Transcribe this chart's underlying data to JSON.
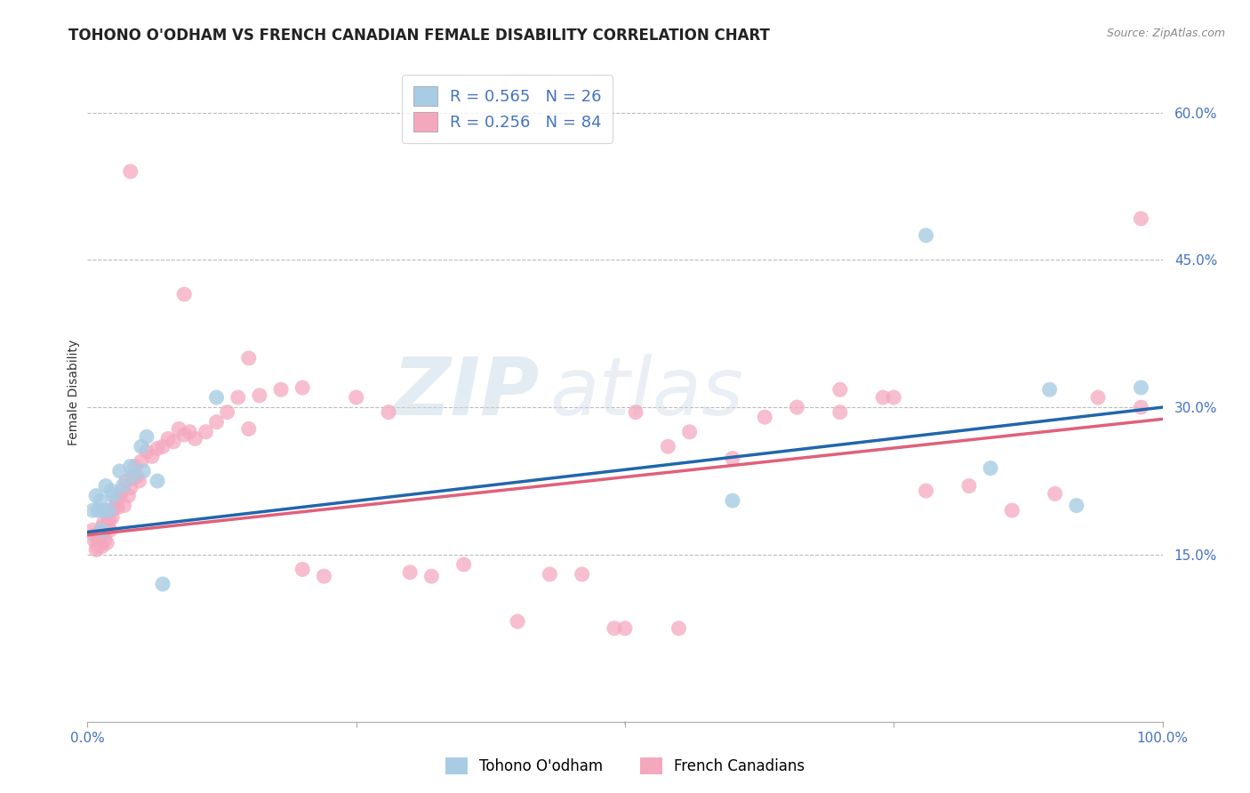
{
  "title": "TOHONO O'ODHAM VS FRENCH CANADIAN FEMALE DISABILITY CORRELATION CHART",
  "source": "Source: ZipAtlas.com",
  "ylabel": "Female Disability",
  "watermark_zip": "ZIP",
  "watermark_atlas": "atlas",
  "xlim": [
    0.0,
    1.0
  ],
  "ylim": [
    -0.02,
    0.65
  ],
  "ytick_positions": [
    0.15,
    0.3,
    0.45,
    0.6
  ],
  "yticklabels": [
    "15.0%",
    "30.0%",
    "45.0%",
    "60.0%"
  ],
  "xticks": [
    0.0,
    0.25,
    0.5,
    0.75,
    1.0
  ],
  "xticklabels": [
    "0.0%",
    "",
    "",
    "",
    "100.0%"
  ],
  "legend_r1": "R = 0.565",
  "legend_n1": "N = 26",
  "legend_r2": "R = 0.256",
  "legend_n2": "N = 84",
  "color_blue": "#a8cce4",
  "color_pink": "#f4a8be",
  "line_blue": "#2166ac",
  "line_pink": "#e0607a",
  "legend_label1": "Tohono O'odham",
  "legend_label2": "French Canadians",
  "background_color": "#ffffff",
  "grid_color": "#bbbbbb",
  "title_fontsize": 12,
  "axis_label_fontsize": 10,
  "tick_fontsize": 11,
  "tohono_x": [
    0.005,
    0.008,
    0.01,
    0.012,
    0.013,
    0.015,
    0.017,
    0.02,
    0.022,
    0.024,
    0.03,
    0.033,
    0.04,
    0.042,
    0.05,
    0.052,
    0.055,
    0.065,
    0.07,
    0.12,
    0.6,
    0.78,
    0.84,
    0.895,
    0.92,
    0.98
  ],
  "tohono_y": [
    0.195,
    0.21,
    0.195,
    0.205,
    0.175,
    0.195,
    0.22,
    0.195,
    0.215,
    0.21,
    0.235,
    0.22,
    0.24,
    0.23,
    0.26,
    0.235,
    0.27,
    0.225,
    0.12,
    0.31,
    0.205,
    0.475,
    0.238,
    0.318,
    0.2,
    0.32
  ],
  "french_x": [
    0.005,
    0.006,
    0.007,
    0.008,
    0.009,
    0.01,
    0.011,
    0.012,
    0.013,
    0.014,
    0.015,
    0.016,
    0.017,
    0.018,
    0.019,
    0.02,
    0.021,
    0.022,
    0.023,
    0.025,
    0.027,
    0.028,
    0.03,
    0.032,
    0.034,
    0.036,
    0.038,
    0.04,
    0.042,
    0.044,
    0.046,
    0.048,
    0.05,
    0.055,
    0.06,
    0.065,
    0.07,
    0.075,
    0.08,
    0.085,
    0.09,
    0.095,
    0.1,
    0.11,
    0.12,
    0.13,
    0.14,
    0.15,
    0.16,
    0.18,
    0.2,
    0.22,
    0.25,
    0.28,
    0.3,
    0.32,
    0.35,
    0.4,
    0.43,
    0.46,
    0.49,
    0.51,
    0.54,
    0.56,
    0.6,
    0.63,
    0.66,
    0.7,
    0.74,
    0.78,
    0.82,
    0.86,
    0.9,
    0.94,
    0.98,
    0.04,
    0.09,
    0.15,
    0.5,
    0.55,
    0.7,
    0.75,
    0.98,
    0.2
  ],
  "french_y": [
    0.175,
    0.165,
    0.17,
    0.155,
    0.158,
    0.165,
    0.172,
    0.168,
    0.158,
    0.178,
    0.182,
    0.165,
    0.175,
    0.162,
    0.18,
    0.185,
    0.175,
    0.195,
    0.188,
    0.198,
    0.205,
    0.198,
    0.21,
    0.215,
    0.2,
    0.225,
    0.21,
    0.218,
    0.228,
    0.24,
    0.23,
    0.225,
    0.245,
    0.255,
    0.25,
    0.258,
    0.26,
    0.268,
    0.265,
    0.278,
    0.272,
    0.275,
    0.268,
    0.275,
    0.285,
    0.295,
    0.31,
    0.278,
    0.312,
    0.318,
    0.135,
    0.128,
    0.31,
    0.295,
    0.132,
    0.128,
    0.14,
    0.082,
    0.13,
    0.13,
    0.075,
    0.295,
    0.26,
    0.275,
    0.248,
    0.29,
    0.3,
    0.295,
    0.31,
    0.215,
    0.22,
    0.195,
    0.212,
    0.31,
    0.3,
    0.54,
    0.415,
    0.35,
    0.075,
    0.075,
    0.318,
    0.31,
    0.492,
    0.32
  ]
}
